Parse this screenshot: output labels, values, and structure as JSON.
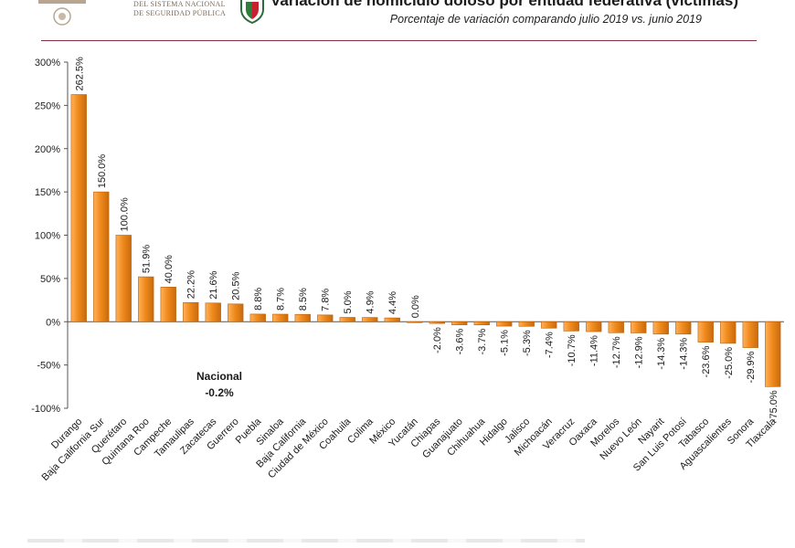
{
  "header": {
    "agency_line1": "DEL SISTEMA NACIONAL",
    "agency_line2": "DE SEGURIDAD PÚBLICA",
    "title": "Variación de homicidio doloso por entidad federativa (víctimas)",
    "subtitle": "Porcentaje de variación comparando julio 2019 vs. junio 2019"
  },
  "colors": {
    "bar": "#f08a1c",
    "bar_dark": "#b85f0a",
    "rule": "#8a2c44"
  },
  "chart_data": {
    "type": "bar",
    "title": "Variación de homicidio doloso por entidad federativa (víctimas)",
    "subtitle": "Porcentaje de variación comparando julio 2019 vs. junio 2019",
    "categories": [
      "Durango",
      "Baja California Sur",
      "Querétaro",
      "Quintana Roo",
      "Campeche",
      "Tamaulipas",
      "Zacatecas",
      "Guerrero",
      "Puebla",
      "Sinaloa",
      "Baja California",
      "Ciudad de México",
      "Coahuila",
      "Colima",
      "México",
      "Yucatán",
      "Chiapas",
      "Guanajuato",
      "Chihuahua",
      "Hidalgo",
      "Jalisco",
      "Michoacán",
      "Veracruz",
      "Oaxaca",
      "Morelos",
      "Nuevo León",
      "Nayarit",
      "San Luis Potosí",
      "Tabasco",
      "Aguascalientes",
      "Sonora",
      "Tlaxcala"
    ],
    "values": [
      262.5,
      150.0,
      100.0,
      51.9,
      40.0,
      22.2,
      21.6,
      20.5,
      8.8,
      8.7,
      8.5,
      7.8,
      5.0,
      4.9,
      4.4,
      0.0,
      -2.0,
      -3.6,
      -3.7,
      -5.1,
      -5.3,
      -7.4,
      -10.7,
      -11.4,
      -12.7,
      -12.9,
      -14.3,
      -14.3,
      -23.6,
      -25.0,
      -29.9,
      -75.0
    ],
    "labels": [
      "262.5%",
      "150.0%",
      "100.0%",
      "51.9%",
      "40.0%",
      "22.2%",
      "21.6%",
      "20.5%",
      "8.8%",
      "8.7%",
      "8.5%",
      "7.8%",
      "5.0%",
      "4.9%",
      "4.4%",
      "0.0%",
      "-2.0%",
      "-3.6%",
      "-3.7%",
      "-5.1%",
      "-5.3%",
      "-7.4%",
      "-10.7%",
      "-11.4%",
      "-12.7%",
      "-12.9%",
      "-14.3%",
      "-14.3%",
      "-23.6%",
      "-25.0%",
      "-29.9%",
      "-75.0%"
    ],
    "ylim": [
      -100,
      300
    ],
    "yticks": [
      300,
      250,
      200,
      150,
      100,
      50,
      0,
      -50,
      -100
    ],
    "ytick_labels": [
      "300%",
      "250%",
      "200%",
      "150%",
      "100%",
      "50%",
      "0%",
      "-50%",
      "-100%"
    ],
    "annotation": {
      "label": "Nacional",
      "value": "-0.2%"
    },
    "grid": false,
    "legend": "none"
  }
}
